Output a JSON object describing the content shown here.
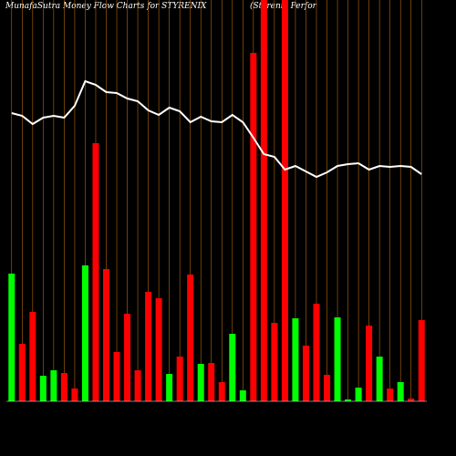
{
  "chart_data": {
    "type": "bar",
    "title": "MunafaSutra  Money Flow  Charts for STYRENIX",
    "subtitle": "(Styrenix Perfor",
    "categories": [
      null,
      null,
      null,
      null,
      null,
      null,
      null,
      null,
      null,
      null,
      null,
      null,
      null,
      null,
      null,
      null,
      null,
      null,
      null,
      null,
      null,
      null,
      null,
      null,
      null,
      null,
      null,
      null,
      null,
      null,
      null,
      null,
      null,
      null,
      null,
      null,
      null,
      null,
      null,
      null
    ],
    "values": [
      140,
      63,
      98,
      28,
      34,
      31,
      14,
      149,
      283,
      145,
      54,
      96,
      34,
      120,
      113,
      30,
      49,
      139,
      41,
      42,
      21,
      74,
      12,
      382,
      460,
      86,
      460,
      91,
      61,
      107,
      29,
      92,
      2,
      15,
      83,
      49,
      14,
      21,
      3,
      89
    ],
    "colors": [
      "#00ff00",
      "#ff0000",
      "#ff0000",
      "#00ff00",
      "#00ff00",
      "#ff0000",
      "#ff0000",
      "#00ff00",
      "#ff0000",
      "#ff0000",
      "#ff0000",
      "#ff0000",
      "#ff0000",
      "#ff0000",
      "#ff0000",
      "#00ff00",
      "#ff0000",
      "#ff0000",
      "#00ff00",
      "#ff0000",
      "#ff0000",
      "#00ff00",
      "#00ff00",
      "#ff0000",
      "#ff0000",
      "#ff0000",
      "#ff0000",
      "#00ff00",
      "#ff0000",
      "#ff0000",
      "#ff0000",
      "#00ff00",
      "#00ff00",
      "#00ff00",
      "#ff0000",
      "#00ff00",
      "#ff0000",
      "#00ff00",
      "#ff0000",
      "#ff0000"
    ],
    "line": {
      "color": "#ffffff",
      "values": [
        316,
        313,
        304,
        311,
        313,
        311,
        324,
        351,
        347,
        339,
        338,
        332,
        329,
        319,
        314,
        322,
        318,
        306,
        312,
        307,
        306,
        314,
        306,
        289,
        271,
        268,
        254,
        258,
        252,
        246,
        251,
        258,
        260,
        261,
        254,
        258,
        257,
        258,
        257,
        249
      ]
    },
    "ylim": [
      0,
      440
    ],
    "grid_color": "#b8680a"
  }
}
